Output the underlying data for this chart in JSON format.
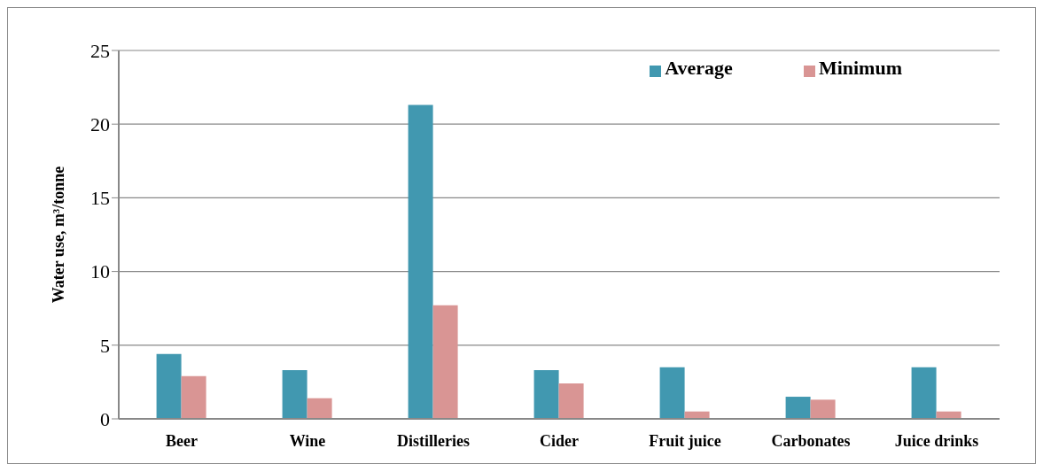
{
  "chart_data": {
    "type": "bar",
    "ylabel": "Water use, m³/tonne",
    "categories": [
      "Beer",
      "Wine",
      "Distilleries",
      "Cider",
      "Fruit juice",
      "Carbonates",
      "Juice drinks"
    ],
    "series": [
      {
        "name": "Average",
        "color": "#4198b0",
        "values": [
          4.4,
          3.3,
          21.3,
          3.3,
          3.5,
          1.5,
          3.5
        ]
      },
      {
        "name": "Minimum",
        "color": "#d99594",
        "values": [
          2.9,
          1.4,
          7.7,
          2.4,
          0.5,
          1.3,
          0.5
        ]
      }
    ],
    "ylim": [
      0,
      25
    ],
    "yticks": [
      0,
      5,
      10,
      15,
      20,
      25
    ],
    "grid": "y",
    "legend": "top right"
  }
}
